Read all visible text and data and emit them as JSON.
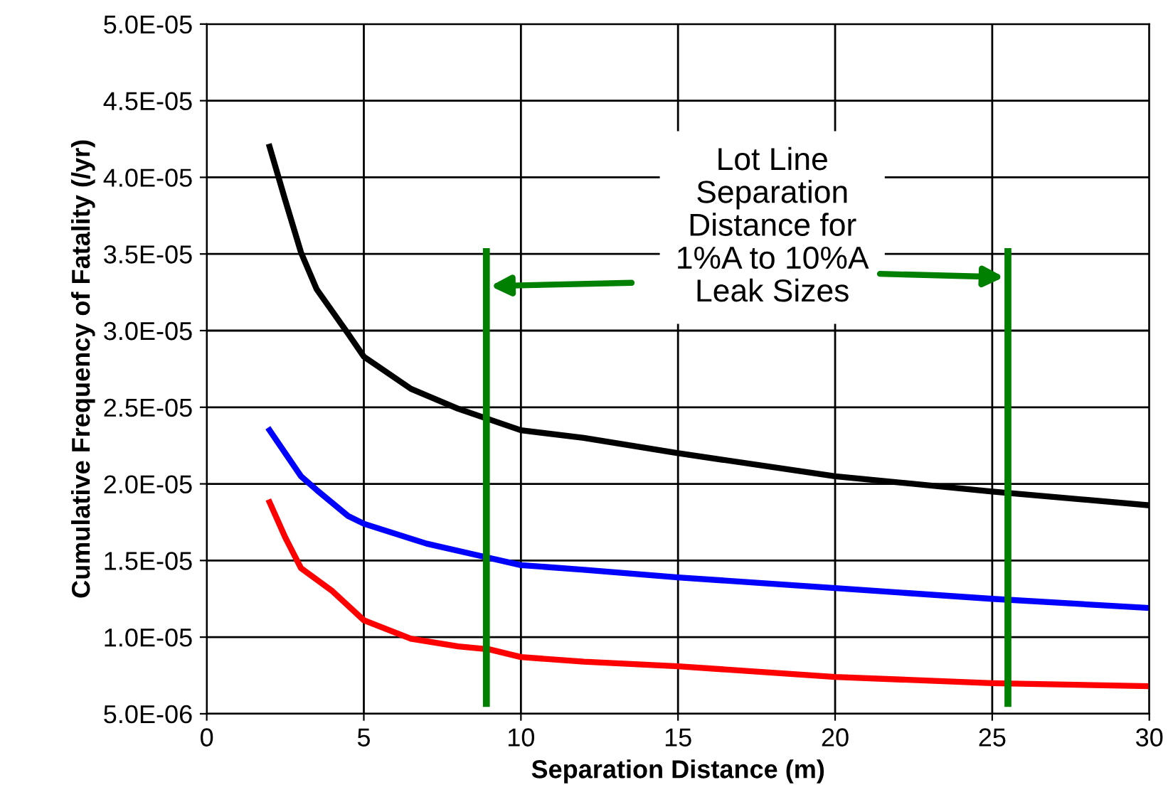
{
  "chart_data": {
    "type": "line",
    "xlabel": "Separation Distance (m)",
    "ylabel": "Cumulative Frequency of Fatality (/yr)",
    "xlim": [
      0,
      30
    ],
    "xticks": [
      0,
      5,
      10,
      15,
      20,
      25,
      30
    ],
    "ylim": [
      5e-06,
      5e-05
    ],
    "yticks": [
      {
        "value": 5e-06,
        "label": "5.0E-06"
      },
      {
        "value": 1e-05,
        "label": "1.0E-05"
      },
      {
        "value": 1.5e-05,
        "label": "1.5E-05"
      },
      {
        "value": 2e-05,
        "label": "2.0E-05"
      },
      {
        "value": 2.5e-05,
        "label": "2.5E-05"
      },
      {
        "value": 3e-05,
        "label": "3.0E-05"
      },
      {
        "value": 3.5e-05,
        "label": "3.5E-05"
      },
      {
        "value": 4e-05,
        "label": "4.0E-05"
      },
      {
        "value": 4.5e-05,
        "label": "4.5E-05"
      },
      {
        "value": 5e-05,
        "label": "5.0E-05"
      }
    ],
    "grid": true,
    "legend": false,
    "marker": "none",
    "line_style": "solid",
    "series": [
      {
        "color": "#000000",
        "x": [
          2,
          2.5,
          3,
          3.5,
          4.5,
          5,
          6.5,
          8,
          10,
          12,
          15,
          20,
          25,
          30
        ],
        "values": [
          4.2e-05,
          3.85e-05,
          3.51e-05,
          3.27e-05,
          2.98e-05,
          2.83e-05,
          2.62e-05,
          2.49e-05,
          2.35e-05,
          2.3e-05,
          2.2e-05,
          2.05e-05,
          1.95e-05,
          1.86e-05
        ]
      },
      {
        "color": "#0000ff",
        "x": [
          2,
          3,
          3.5,
          4.5,
          5,
          7,
          8.5,
          10,
          12,
          15,
          20,
          25,
          30
        ],
        "values": [
          2.35e-05,
          2.05e-05,
          1.96e-05,
          1.79e-05,
          1.74e-05,
          1.61e-05,
          1.54e-05,
          1.47e-05,
          1.44e-05,
          1.39e-05,
          1.32e-05,
          1.25e-05,
          1.19e-05
        ]
      },
      {
        "color": "#ff0000",
        "x": [
          2,
          2.5,
          3,
          4,
          5,
          6.5,
          8,
          9,
          10,
          12,
          15,
          20,
          25,
          30
        ],
        "values": [
          1.88e-05,
          1.65e-05,
          1.45e-05,
          1.3e-05,
          1.11e-05,
          9.9e-06,
          9.4e-06,
          9.2e-06,
          8.7e-06,
          8.4e-06,
          8.1e-06,
          7.4e-06,
          7e-06,
          6.8e-06
        ]
      }
    ],
    "ref_lines": [
      {
        "axis": "x",
        "value": 8.9,
        "color": "#008000"
      },
      {
        "axis": "x",
        "value": 25.5,
        "color": "#008000"
      }
    ],
    "annotations": [
      "Lot Line\nSeparation\nDistance for\n1%A to 10%A\nLeak Sizes"
    ]
  }
}
